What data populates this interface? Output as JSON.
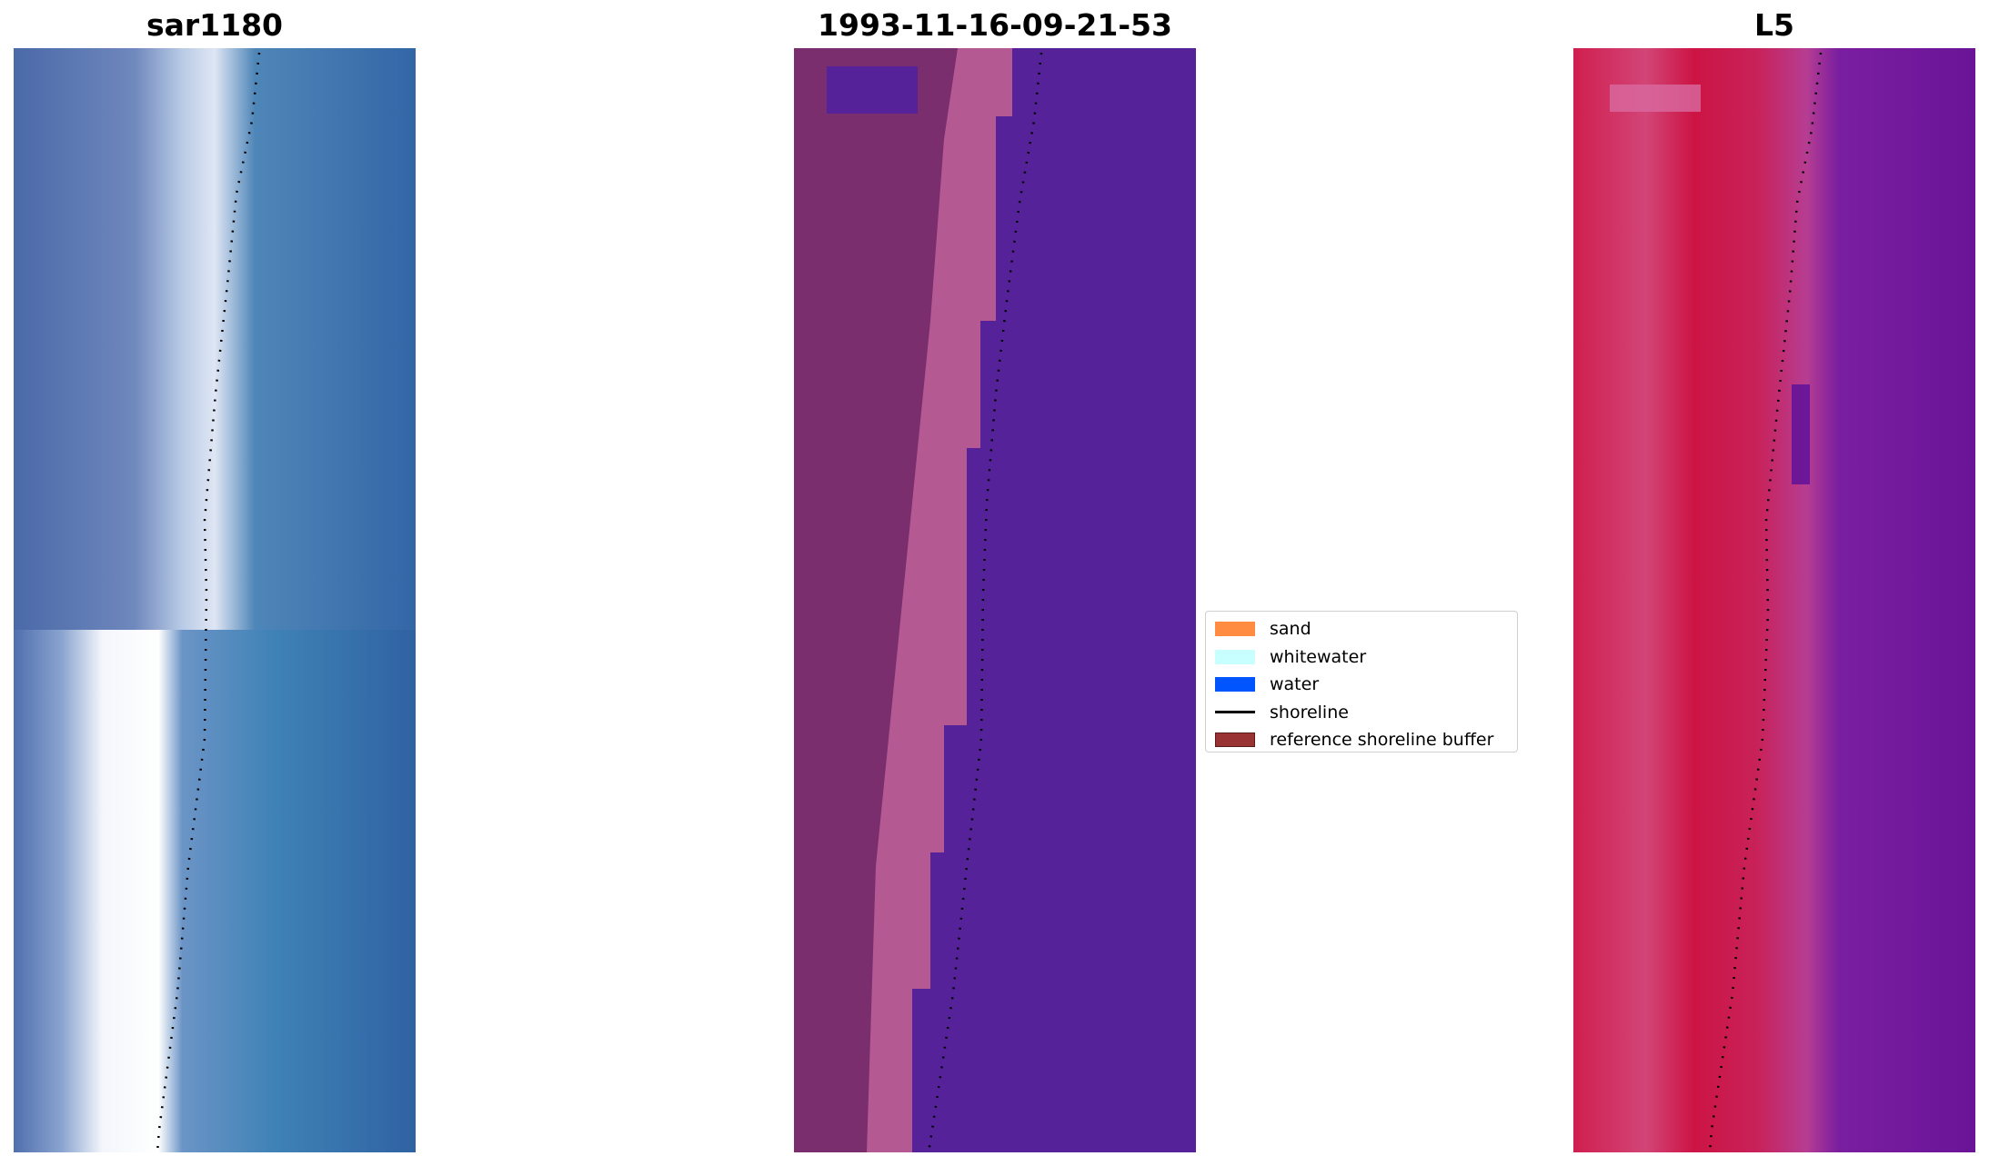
{
  "panels": [
    {
      "title": "sar1180",
      "kind": "rgb"
    },
    {
      "title": "1993-11-16-09-21-53",
      "kind": "classified"
    },
    {
      "title": "L5",
      "kind": "index"
    }
  ],
  "legend": {
    "items": [
      {
        "label": "sand",
        "type": "patch",
        "color": "#ff8c40"
      },
      {
        "label": "whitewater",
        "type": "patch",
        "color": "#c8ffff"
      },
      {
        "label": "water",
        "type": "patch",
        "color": "#0055ff"
      },
      {
        "label": "shoreline",
        "type": "line",
        "color": "#000000"
      },
      {
        "label": "reference shoreline buffer",
        "type": "patch",
        "color": "#993333"
      }
    ]
  },
  "colors": {
    "rgb_water": "#3a6fa8",
    "rgb_sand": "#e8eef8",
    "class_land": "#7a2e6e",
    "class_buffer": "#c0609a",
    "class_water": "#55229a",
    "index_land": "#c8123e",
    "index_water": "#6c1a9a"
  }
}
